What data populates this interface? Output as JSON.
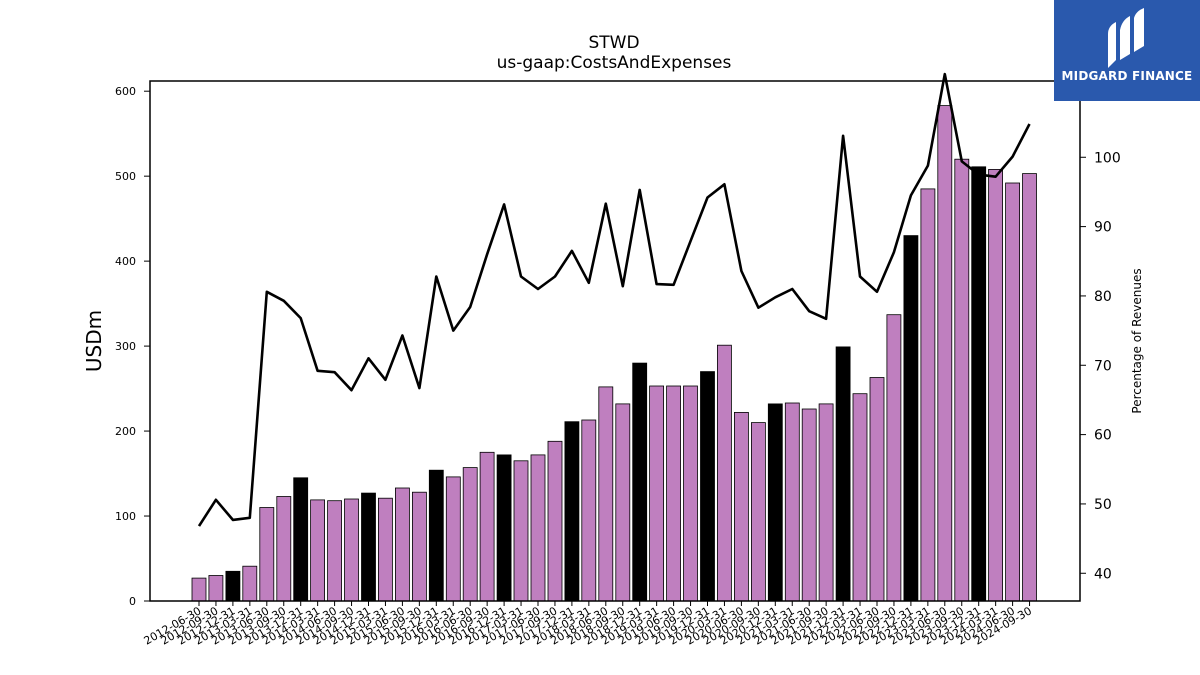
{
  "colors": {
    "bar_default": "#bf7fbf",
    "bar_highlight": "#000000",
    "line": "#000000",
    "logo_bg": "#2a59ad"
  },
  "logo": {
    "text": "MIDGARD FINANCE",
    "icon": "midgard-logo-icon"
  },
  "chart_data": {
    "type": "bar",
    "title": "STWD",
    "subtitle": "us-gaap:CostsAndExpenses",
    "ylabel": "USDm",
    "y2label": "Percentage of Revenues",
    "ylim": [
      0,
      612
    ],
    "y2lim": [
      36,
      111
    ],
    "yticks": [
      0,
      100,
      200,
      300,
      400,
      500,
      600
    ],
    "y2ticks": [
      40,
      50,
      60,
      70,
      80,
      90,
      100
    ],
    "categories": [
      "2012-06-30",
      "2012-09-30",
      "2012-12-31",
      "2013-03-31",
      "2013-06-30",
      "2013-09-30",
      "2013-12-31",
      "2014-03-31",
      "2014-06-30",
      "2014-09-30",
      "2014-12-31",
      "2015-03-31",
      "2015-06-30",
      "2015-09-30",
      "2015-12-31",
      "2016-03-31",
      "2016-06-30",
      "2016-09-30",
      "2016-12-31",
      "2017-03-31",
      "2017-06-30",
      "2017-09-30",
      "2017-12-31",
      "2018-03-31",
      "2018-06-30",
      "2018-09-30",
      "2018-12-31",
      "2019-03-31",
      "2019-06-30",
      "2019-09-30",
      "2019-12-31",
      "2020-03-31",
      "2020-06-30",
      "2020-09-30",
      "2020-12-31",
      "2021-03-31",
      "2021-06-30",
      "2021-09-30",
      "2021-12-31",
      "2022-03-31",
      "2022-06-30",
      "2022-09-30",
      "2022-12-31",
      "2023-03-31",
      "2023-06-30",
      "2023-09-30",
      "2023-12-31",
      "2024-03-31",
      "2024-06-30",
      "2024-09-30"
    ],
    "xticklabels": [
      "2012-06-30",
      "2012-09-30",
      "2012-12-31",
      "2013-03-31",
      "2013-06-30",
      "2013-09-30",
      "2013-12-31",
      "2014-03-31",
      "2014-06-30",
      "2014-09-30",
      "2014-12-31",
      "2015-03-31",
      "2015-06-30",
      "2015-09-30",
      "2015-12-31",
      "2016-03-31",
      "2016-06-30",
      "2016-09-30",
      "2016-12-31",
      "2017-03-31",
      "2017-06-30",
      "2017-09-30",
      "2017-12-31",
      "2018-03-31",
      "2018-06-30",
      "2018-09-30",
      "2018-12-31",
      "2019-03-31",
      "2019-06-30",
      "2019-09-30",
      "2019-12-31",
      "2020-03-31",
      "2020-06-30",
      "2020-09-30",
      "2020-12-31",
      "2021-03-31",
      "2021-06-30",
      "2021-09-30",
      "2021-12-31",
      "2022-03-31",
      "2022-06-30",
      "2022-09-30",
      "2022-12-31",
      "2023-03-31",
      "2023-06-30",
      "2023-09-30",
      "2023-12-31",
      "2024-03-31",
      "2024-06-30",
      "2024-09-30"
    ],
    "series": [
      {
        "axis": "left",
        "type": "bar",
        "values": [
          27,
          30,
          35,
          41,
          110,
          123,
          145,
          119,
          118,
          120,
          127,
          121,
          133,
          128,
          154,
          146,
          157,
          175,
          172,
          165,
          172,
          188,
          211,
          213,
          252,
          232,
          280,
          253,
          253,
          253,
          270,
          301,
          222,
          210,
          232,
          233,
          226,
          232,
          299,
          244,
          263,
          337,
          430,
          485,
          583,
          520,
          511,
          508,
          492,
          503
        ],
        "highlight": [
          false,
          false,
          true,
          false,
          false,
          false,
          true,
          false,
          false,
          false,
          true,
          false,
          false,
          false,
          true,
          false,
          false,
          false,
          true,
          false,
          false,
          false,
          true,
          false,
          false,
          false,
          true,
          false,
          false,
          false,
          true,
          false,
          false,
          false,
          true,
          false,
          false,
          false,
          true,
          false,
          false,
          false,
          true,
          false,
          false,
          false,
          true,
          false,
          false,
          false
        ]
      },
      {
        "axis": "right",
        "type": "line",
        "values": [
          46.8,
          50.6,
          47.7,
          48.0,
          80.6,
          79.3,
          76.8,
          69.2,
          69.0,
          66.4,
          71.0,
          67.9,
          74.3,
          66.7,
          82.8,
          75.0,
          78.4,
          86.0,
          93.2,
          82.8,
          81.0,
          82.8,
          86.5,
          81.9,
          93.3,
          81.4,
          95.3,
          81.7,
          81.6,
          87.9,
          94.2,
          96.1,
          83.6,
          78.3,
          79.8,
          81.0,
          77.8,
          76.7,
          103.1,
          82.8,
          80.6,
          86.3,
          94.5,
          98.8,
          112.0,
          99.4,
          97.5,
          97.2,
          100.1,
          104.8
        ]
      }
    ]
  }
}
